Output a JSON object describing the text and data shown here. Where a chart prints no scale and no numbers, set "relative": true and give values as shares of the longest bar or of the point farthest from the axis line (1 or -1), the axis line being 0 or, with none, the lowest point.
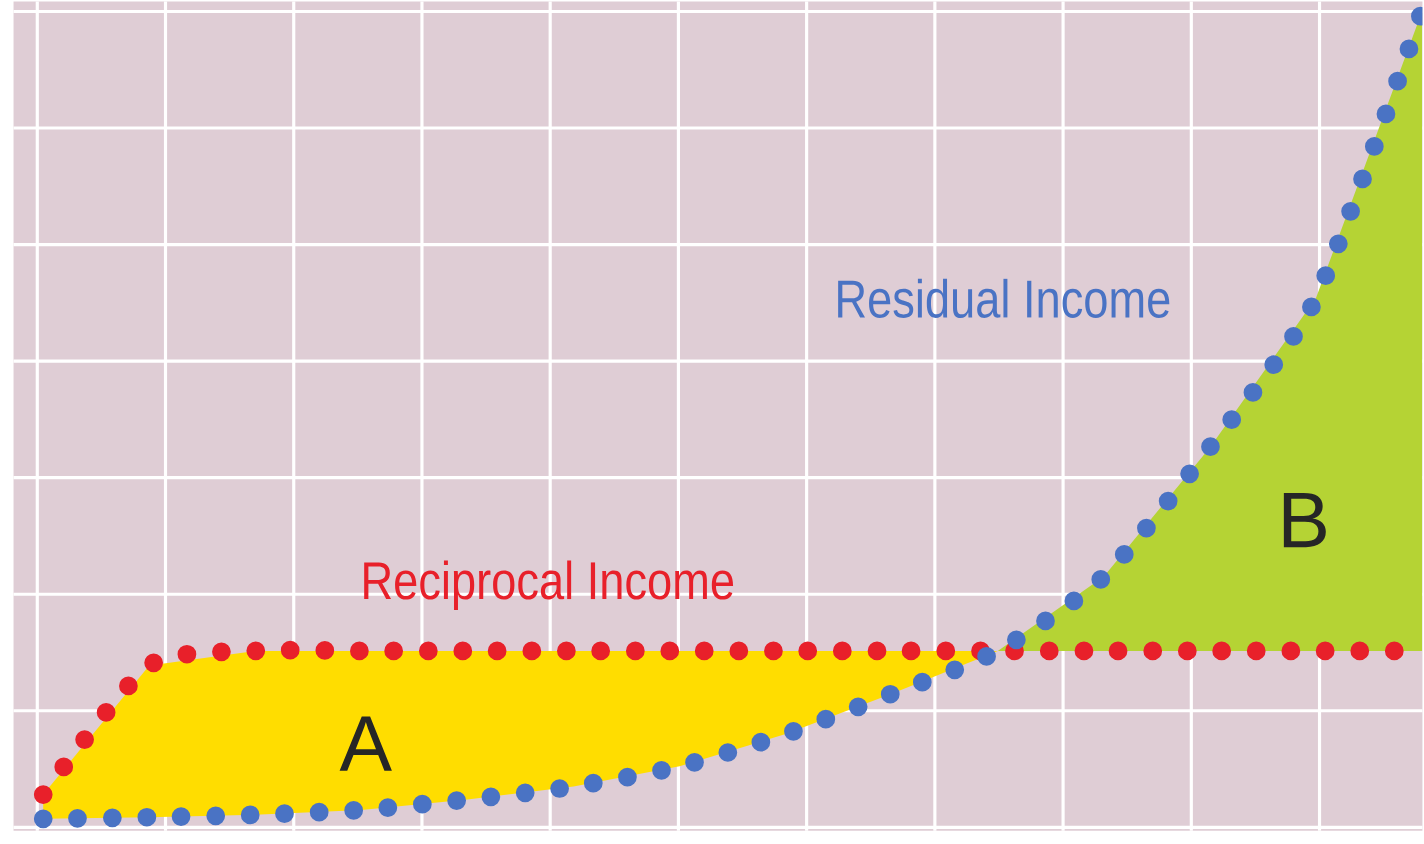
{
  "chart_data": {
    "type": "line",
    "relative": true,
    "grid": true,
    "line_style": "dotted",
    "marker": "none",
    "categories": [
      null,
      null,
      null,
      null,
      null,
      null,
      null,
      null,
      null,
      null,
      null,
      null,
      null,
      null
    ],
    "series": [
      {
        "name": "Reciprocal Income",
        "color": "#e8202a",
        "values": [
          0.03,
          0.19,
          0.208,
          0.208,
          0.208,
          0.208,
          0.208,
          0.208,
          0.208,
          0.208,
          0.208,
          0.208,
          0.208,
          0.208
        ]
      },
      {
        "name": "Residual Income",
        "color": "#4a73c4",
        "values": [
          0,
          0.002,
          0.005,
          0.011,
          0.024,
          0.04,
          0.065,
          0.105,
          0.155,
          0.208,
          0.3,
          0.46,
          0.645,
          1.0
        ]
      },
      {
        "type": "area",
        "color": "#ffdd00",
        "values": [
          0.03,
          0.19,
          0.208,
          0.208,
          0.208,
          0.208,
          0.208,
          0.208,
          0.208,
          0.208,
          null,
          null,
          null,
          null
        ]
      },
      {
        "type": "area",
        "color": "#b5d334",
        "values": [
          null,
          null,
          null,
          null,
          null,
          null,
          null,
          null,
          null,
          0.208,
          0.3,
          0.46,
          0.645,
          1.0
        ]
      }
    ],
    "annotations": [
      "A",
      "B"
    ]
  }
}
